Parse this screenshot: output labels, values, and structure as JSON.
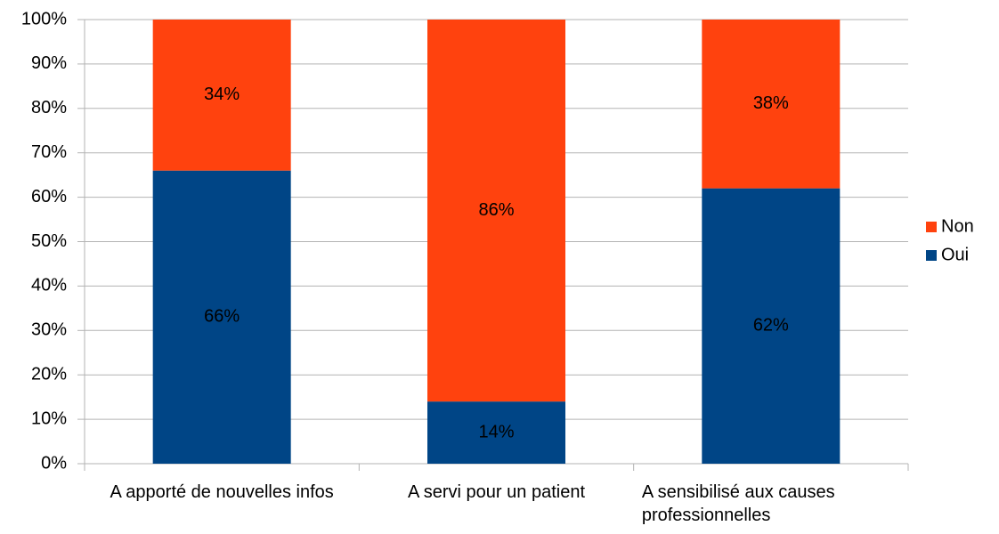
{
  "chart_data": {
    "type": "stacked_bar",
    "categories": [
      "A apporté de nouvelles infos",
      "A servi pour un patient",
      "A sensibilisé aux causes professionnelles"
    ],
    "series": [
      {
        "name": "Oui",
        "color": "#004586",
        "values": [
          66,
          14,
          62
        ],
        "value_labels": [
          "66%",
          "14%",
          "62%"
        ]
      },
      {
        "name": "Non",
        "color": "#ff420e",
        "values": [
          34,
          86,
          38
        ],
        "value_labels": [
          "34%",
          "86%",
          "38%"
        ]
      }
    ],
    "ylim": [
      0,
      100
    ],
    "yticks": [
      {
        "value": 0,
        "label": "0%"
      },
      {
        "value": 10,
        "label": "10%"
      },
      {
        "value": 20,
        "label": "20%"
      },
      {
        "value": 30,
        "label": "30%"
      },
      {
        "value": 40,
        "label": "40%"
      },
      {
        "value": 50,
        "label": "50%"
      },
      {
        "value": 60,
        "label": "60%"
      },
      {
        "value": 70,
        "label": "70%"
      },
      {
        "value": 80,
        "label": "80%"
      },
      {
        "value": 90,
        "label": "90%"
      },
      {
        "value": 100,
        "label": "100%"
      }
    ],
    "grid": true,
    "legend": "right"
  }
}
